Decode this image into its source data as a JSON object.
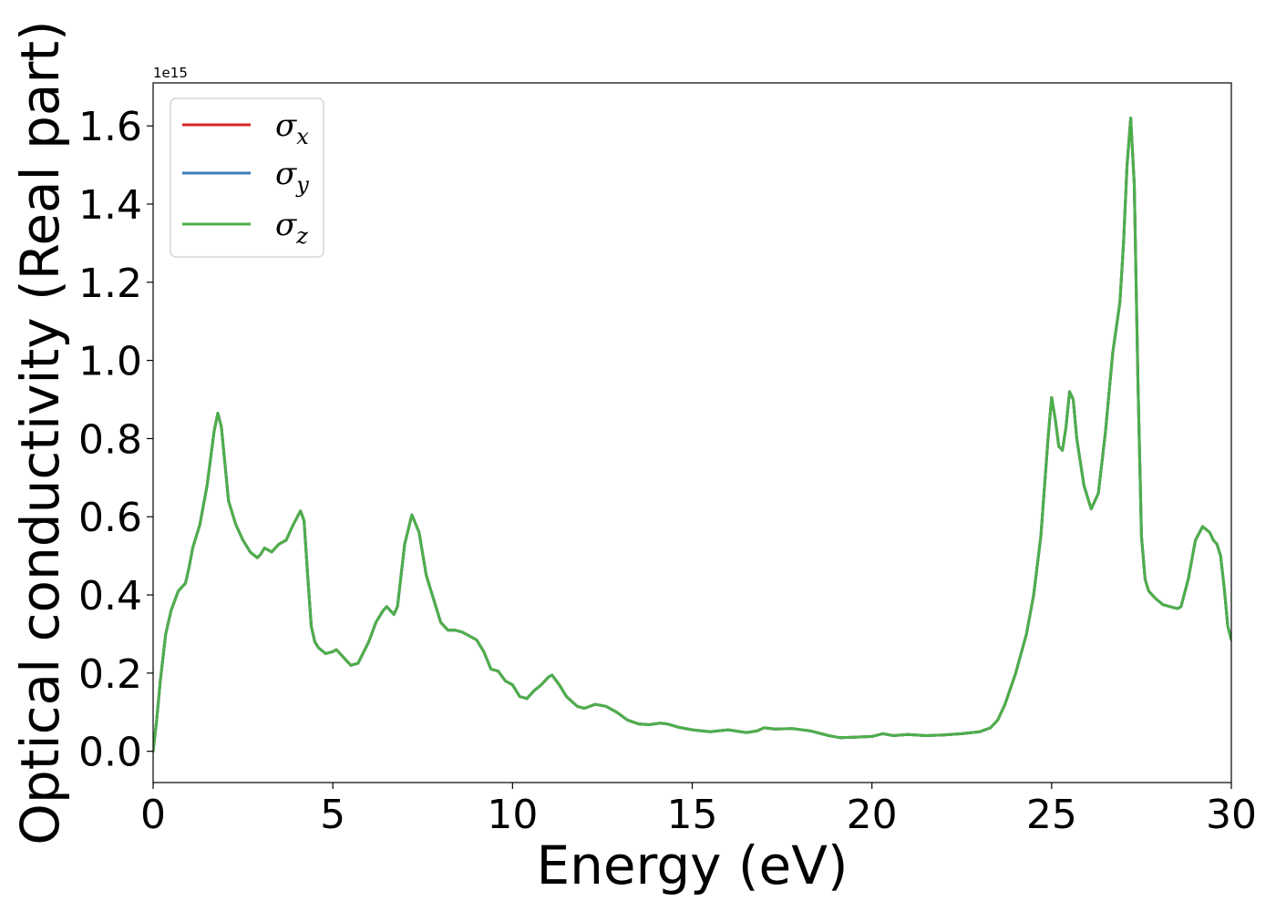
{
  "chart_data": {
    "type": "line",
    "title": "",
    "xlabel": "Energy (eV)",
    "ylabel": "Optical conductivity (Real part)",
    "y_offset_label": "1e15",
    "xlim": [
      0,
      30
    ],
    "ylim": [
      -0.08,
      1.71
    ],
    "xticks": [
      0,
      5,
      10,
      15,
      20,
      25,
      30
    ],
    "xtick_labels": [
      "0",
      "5",
      "10",
      "15",
      "20",
      "25",
      "30"
    ],
    "yticks": [
      0.0,
      0.2,
      0.4,
      0.6,
      0.8,
      1.0,
      1.2,
      1.4,
      1.6
    ],
    "ytick_labels": [
      "0.0",
      "0.2",
      "0.4",
      "0.6",
      "0.8",
      "1.0",
      "1.2",
      "1.4",
      "1.6"
    ],
    "grid": false,
    "legend_position": "top-left",
    "x": [
      0,
      0.1,
      0.2,
      0.35,
      0.5,
      0.7,
      0.9,
      1.0,
      1.1,
      1.3,
      1.5,
      1.7,
      1.8,
      1.9,
      2.1,
      2.3,
      2.5,
      2.7,
      2.9,
      3.0,
      3.1,
      3.2,
      3.3,
      3.5,
      3.7,
      3.9,
      4.1,
      4.2,
      4.3,
      4.4,
      4.5,
      4.6,
      4.8,
      5.0,
      5.1,
      5.3,
      5.5,
      5.7,
      6.0,
      6.2,
      6.4,
      6.5,
      6.7,
      6.8,
      7.0,
      7.2,
      7.4,
      7.6,
      7.8,
      8.0,
      8.2,
      8.4,
      8.6,
      8.8,
      9.0,
      9.2,
      9.4,
      9.6,
      9.8,
      10.0,
      10.2,
      10.4,
      10.6,
      10.8,
      11.0,
      11.1,
      11.3,
      11.5,
      11.8,
      12.0,
      12.3,
      12.6,
      12.9,
      13.2,
      13.5,
      13.8,
      14.1,
      14.3,
      14.6,
      15.0,
      15.5,
      16.0,
      16.5,
      16.8,
      17.0,
      17.3,
      17.8,
      18.3,
      18.8,
      19.1,
      19.5,
      20.0,
      20.3,
      20.6,
      21.0,
      21.5,
      22.0,
      22.5,
      23.0,
      23.3,
      23.5,
      23.7,
      24.0,
      24.3,
      24.5,
      24.7,
      24.9,
      25.0,
      25.1,
      25.2,
      25.3,
      25.4,
      25.5,
      25.6,
      25.7,
      25.9,
      26.1,
      26.3,
      26.5,
      26.7,
      26.9,
      27.0,
      27.1,
      27.2,
      27.3,
      27.4,
      27.5,
      27.6,
      27.7,
      27.9,
      28.1,
      28.3,
      28.5,
      28.6,
      28.8,
      29.0,
      29.2,
      29.4,
      29.5,
      29.6,
      29.7,
      29.8,
      29.9,
      30.0
    ],
    "series": [
      {
        "name": "σx",
        "color": "#d62728",
        "values": [
          0.0,
          0.08,
          0.18,
          0.3,
          0.36,
          0.41,
          0.43,
          0.47,
          0.52,
          0.58,
          0.68,
          0.82,
          0.865,
          0.83,
          0.64,
          0.58,
          0.54,
          0.51,
          0.495,
          0.505,
          0.52,
          0.515,
          0.51,
          0.53,
          0.54,
          0.58,
          0.615,
          0.59,
          0.45,
          0.32,
          0.28,
          0.265,
          0.25,
          0.255,
          0.26,
          0.24,
          0.22,
          0.225,
          0.28,
          0.33,
          0.36,
          0.37,
          0.35,
          0.37,
          0.53,
          0.605,
          0.56,
          0.45,
          0.39,
          0.33,
          0.31,
          0.31,
          0.305,
          0.295,
          0.285,
          0.255,
          0.21,
          0.205,
          0.18,
          0.17,
          0.14,
          0.135,
          0.155,
          0.17,
          0.19,
          0.195,
          0.17,
          0.14,
          0.115,
          0.11,
          0.12,
          0.115,
          0.1,
          0.08,
          0.07,
          0.068,
          0.072,
          0.07,
          0.062,
          0.055,
          0.05,
          0.055,
          0.048,
          0.052,
          0.06,
          0.057,
          0.058,
          0.052,
          0.04,
          0.035,
          0.036,
          0.038,
          0.045,
          0.04,
          0.043,
          0.04,
          0.042,
          0.045,
          0.05,
          0.06,
          0.08,
          0.12,
          0.2,
          0.3,
          0.4,
          0.55,
          0.8,
          0.905,
          0.85,
          0.78,
          0.77,
          0.83,
          0.92,
          0.9,
          0.8,
          0.68,
          0.62,
          0.66,
          0.82,
          1.02,
          1.15,
          1.3,
          1.5,
          1.62,
          1.45,
          0.95,
          0.55,
          0.44,
          0.41,
          0.39,
          0.375,
          0.37,
          0.365,
          0.37,
          0.44,
          0.54,
          0.575,
          0.56,
          0.54,
          0.53,
          0.5,
          0.42,
          0.32,
          0.285
        ]
      },
      {
        "name": "σy",
        "color": "#377eb8",
        "values": [
          0.0,
          0.08,
          0.18,
          0.3,
          0.36,
          0.41,
          0.43,
          0.47,
          0.52,
          0.58,
          0.68,
          0.82,
          0.865,
          0.83,
          0.64,
          0.58,
          0.54,
          0.51,
          0.495,
          0.505,
          0.52,
          0.515,
          0.51,
          0.53,
          0.54,
          0.58,
          0.615,
          0.59,
          0.45,
          0.32,
          0.28,
          0.265,
          0.25,
          0.255,
          0.26,
          0.24,
          0.22,
          0.225,
          0.28,
          0.33,
          0.36,
          0.37,
          0.35,
          0.37,
          0.53,
          0.605,
          0.56,
          0.45,
          0.39,
          0.33,
          0.31,
          0.31,
          0.305,
          0.295,
          0.285,
          0.255,
          0.21,
          0.205,
          0.18,
          0.17,
          0.14,
          0.135,
          0.155,
          0.17,
          0.19,
          0.195,
          0.17,
          0.14,
          0.115,
          0.11,
          0.12,
          0.115,
          0.1,
          0.08,
          0.07,
          0.068,
          0.072,
          0.07,
          0.062,
          0.055,
          0.05,
          0.055,
          0.048,
          0.052,
          0.06,
          0.057,
          0.058,
          0.052,
          0.04,
          0.035,
          0.036,
          0.038,
          0.045,
          0.04,
          0.043,
          0.04,
          0.042,
          0.045,
          0.05,
          0.06,
          0.08,
          0.12,
          0.2,
          0.3,
          0.4,
          0.55,
          0.8,
          0.905,
          0.85,
          0.78,
          0.77,
          0.83,
          0.92,
          0.9,
          0.8,
          0.68,
          0.62,
          0.66,
          0.82,
          1.02,
          1.15,
          1.3,
          1.5,
          1.62,
          1.45,
          0.95,
          0.55,
          0.44,
          0.41,
          0.39,
          0.375,
          0.37,
          0.365,
          0.37,
          0.44,
          0.54,
          0.575,
          0.56,
          0.54,
          0.53,
          0.5,
          0.42,
          0.32,
          0.285
        ]
      },
      {
        "name": "σz",
        "color": "#4daf4a",
        "values": [
          0.0,
          0.08,
          0.18,
          0.3,
          0.36,
          0.41,
          0.43,
          0.47,
          0.52,
          0.58,
          0.68,
          0.82,
          0.865,
          0.83,
          0.64,
          0.58,
          0.54,
          0.51,
          0.495,
          0.505,
          0.52,
          0.515,
          0.51,
          0.53,
          0.54,
          0.58,
          0.615,
          0.59,
          0.45,
          0.32,
          0.28,
          0.265,
          0.25,
          0.255,
          0.26,
          0.24,
          0.22,
          0.225,
          0.28,
          0.33,
          0.36,
          0.37,
          0.35,
          0.37,
          0.53,
          0.605,
          0.56,
          0.45,
          0.39,
          0.33,
          0.31,
          0.31,
          0.305,
          0.295,
          0.285,
          0.255,
          0.21,
          0.205,
          0.18,
          0.17,
          0.14,
          0.135,
          0.155,
          0.17,
          0.19,
          0.195,
          0.17,
          0.14,
          0.115,
          0.11,
          0.12,
          0.115,
          0.1,
          0.08,
          0.07,
          0.068,
          0.072,
          0.07,
          0.062,
          0.055,
          0.05,
          0.055,
          0.048,
          0.052,
          0.06,
          0.057,
          0.058,
          0.052,
          0.04,
          0.035,
          0.036,
          0.038,
          0.045,
          0.04,
          0.043,
          0.04,
          0.042,
          0.045,
          0.05,
          0.06,
          0.08,
          0.12,
          0.2,
          0.3,
          0.4,
          0.55,
          0.8,
          0.905,
          0.85,
          0.78,
          0.77,
          0.83,
          0.92,
          0.9,
          0.8,
          0.68,
          0.62,
          0.66,
          0.82,
          1.02,
          1.15,
          1.3,
          1.5,
          1.62,
          1.45,
          0.95,
          0.55,
          0.44,
          0.41,
          0.39,
          0.375,
          0.37,
          0.365,
          0.37,
          0.44,
          0.54,
          0.575,
          0.56,
          0.54,
          0.53,
          0.5,
          0.42,
          0.32,
          0.285
        ]
      }
    ],
    "legend": [
      {
        "symbol": "σ",
        "sub": "x"
      },
      {
        "symbol": "σ",
        "sub": "y"
      },
      {
        "symbol": "σ",
        "sub": "z"
      }
    ]
  }
}
